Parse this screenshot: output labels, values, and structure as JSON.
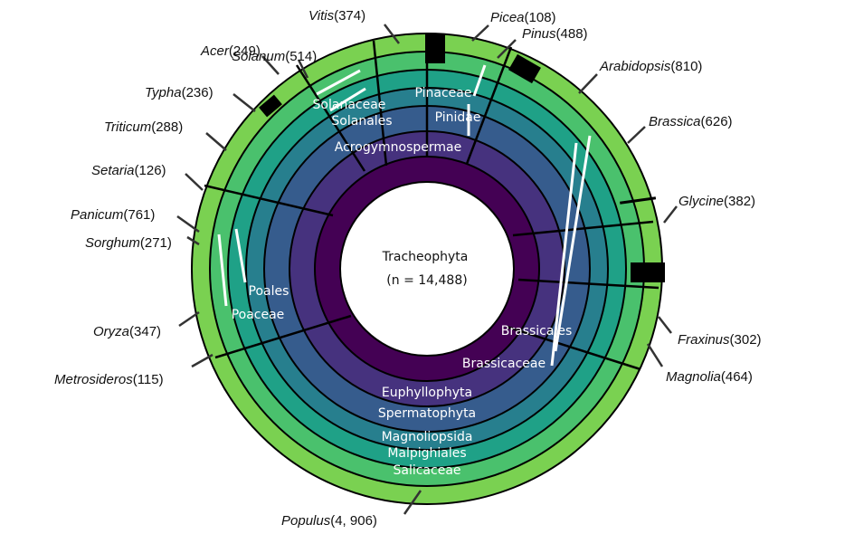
{
  "center": {
    "title": "Tracheophyta",
    "subtitle": "(n = 14,488)"
  },
  "rings": [
    {
      "level": "phylum",
      "color": "#440154"
    },
    {
      "level": "subphylum",
      "color": "#46327e"
    },
    {
      "level": "clade",
      "color": "#365c8d"
    },
    {
      "level": "class",
      "color": "#277f8e"
    },
    {
      "level": "order",
      "color": "#1fa187"
    },
    {
      "level": "family",
      "color": "#4ac16d"
    },
    {
      "level": "genus",
      "color": "#7ad151"
    }
  ],
  "ring_labels": [
    {
      "id": "euphyllophyta",
      "text": "Euphyllophyta"
    },
    {
      "id": "spermatophyta",
      "text": "Spermatophyta"
    },
    {
      "id": "magnoliopsida",
      "text": "Magnoliopsida"
    },
    {
      "id": "malpighiales",
      "text": "Malpighiales"
    },
    {
      "id": "salicaceae",
      "text": "Salicaceae"
    },
    {
      "id": "acrogymnospermae",
      "text": "Acrogymnospermae"
    },
    {
      "id": "pinaceae",
      "text": "Pinaceae"
    },
    {
      "id": "pinidae",
      "text": "Pinidae"
    },
    {
      "id": "solanaceae",
      "text": "Solanaceae"
    },
    {
      "id": "solanales",
      "text": "Solanales"
    },
    {
      "id": "poales",
      "text": "Poales"
    },
    {
      "id": "poaceae",
      "text": "Poaceae"
    },
    {
      "id": "brassicales",
      "text": "Brassicales"
    },
    {
      "id": "brassicaceae",
      "text": "Brassicaceae"
    }
  ],
  "genera": [
    {
      "id": "vitis",
      "name": "Vitis",
      "count": "(374)"
    },
    {
      "id": "picea",
      "name": "Picea",
      "count": "(108)"
    },
    {
      "id": "pinus",
      "name": "Pinus",
      "count": "(488)"
    },
    {
      "id": "arabidopsis",
      "name": "Arabidopsis",
      "count": "(810)"
    },
    {
      "id": "brassica",
      "name": "Brassica",
      "count": "(626)"
    },
    {
      "id": "glycine",
      "name": "Glycine",
      "count": "(382)"
    },
    {
      "id": "fraxinus",
      "name": "Fraxinus",
      "count": "(302)"
    },
    {
      "id": "magnolia",
      "name": "Magnolia",
      "count": "(464)"
    },
    {
      "id": "populus",
      "name": "Populus",
      "count": "(4, 906)"
    },
    {
      "id": "metrosideros",
      "name": "Metrosideros",
      "count": "(115)"
    },
    {
      "id": "oryza",
      "name": "Oryza",
      "count": "(347)"
    },
    {
      "id": "sorghum",
      "name": "Sorghum",
      "count": "(271)"
    },
    {
      "id": "panicum",
      "name": "Panicum",
      "count": "(761)"
    },
    {
      "id": "setaria",
      "name": "Setaria",
      "count": "(126)"
    },
    {
      "id": "triticum",
      "name": "Triticum",
      "count": "(288)"
    },
    {
      "id": "typha",
      "name": "Typha",
      "count": "(236)"
    },
    {
      "id": "acer",
      "name": "Acer",
      "count": "(249)"
    },
    {
      "id": "solanum",
      "name": "Solanum",
      "count": "(514)"
    }
  ]
}
